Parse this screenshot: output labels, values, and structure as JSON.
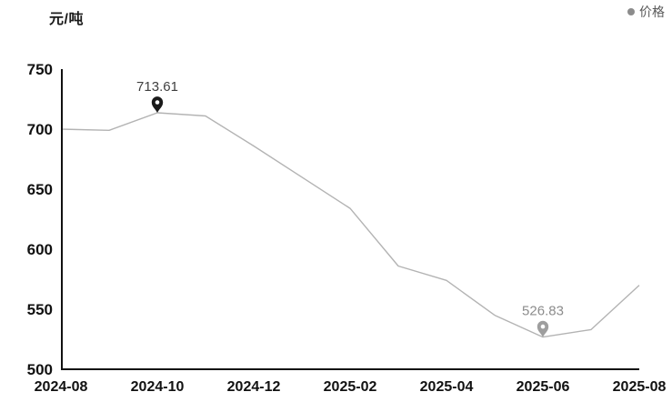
{
  "header": {
    "unit_label": "元/吨",
    "legend": {
      "label": "价格",
      "dot_color": "#8c8c8c",
      "text_color": "#595959"
    }
  },
  "chart_data": {
    "type": "line",
    "title": "",
    "ylabel": "元/吨",
    "categories": [
      "2024-08",
      "2024-09",
      "2024-10",
      "2024-11",
      "2024-12",
      "2025-01",
      "2025-02",
      "2025-03",
      "2025-04",
      "2025-05",
      "2025-06",
      "2025-07",
      "2025-08"
    ],
    "series": [
      {
        "name": "价格",
        "color": "#b3b3b3",
        "values": [
          700,
          699,
          713.61,
          711,
          686,
          660,
          634,
          586,
          574,
          545,
          526.83,
          533,
          570
        ]
      }
    ],
    "ylim": [
      500,
      750
    ],
    "y_ticks": [
      500,
      550,
      600,
      650,
      700,
      750
    ],
    "x_tick_indices": [
      0,
      2,
      4,
      6,
      8,
      10,
      12
    ],
    "x_tick_labels": [
      "2024-08",
      "2024-10",
      "2024-12",
      "2025-02",
      "2025-04",
      "2025-06",
      "2025-08"
    ],
    "grid": false,
    "legend_position": "top-right",
    "axis_color": "#111111",
    "tick_text_color": "#111111",
    "annotations": [
      {
        "type": "max",
        "index": 2,
        "label": "713.61",
        "pin_color": "#1a1a1a",
        "text_color": "#404040"
      },
      {
        "type": "min",
        "index": 10,
        "label": "526.83",
        "pin_color": "#9e9e9e",
        "text_color": "#8c8c8c"
      }
    ]
  }
}
